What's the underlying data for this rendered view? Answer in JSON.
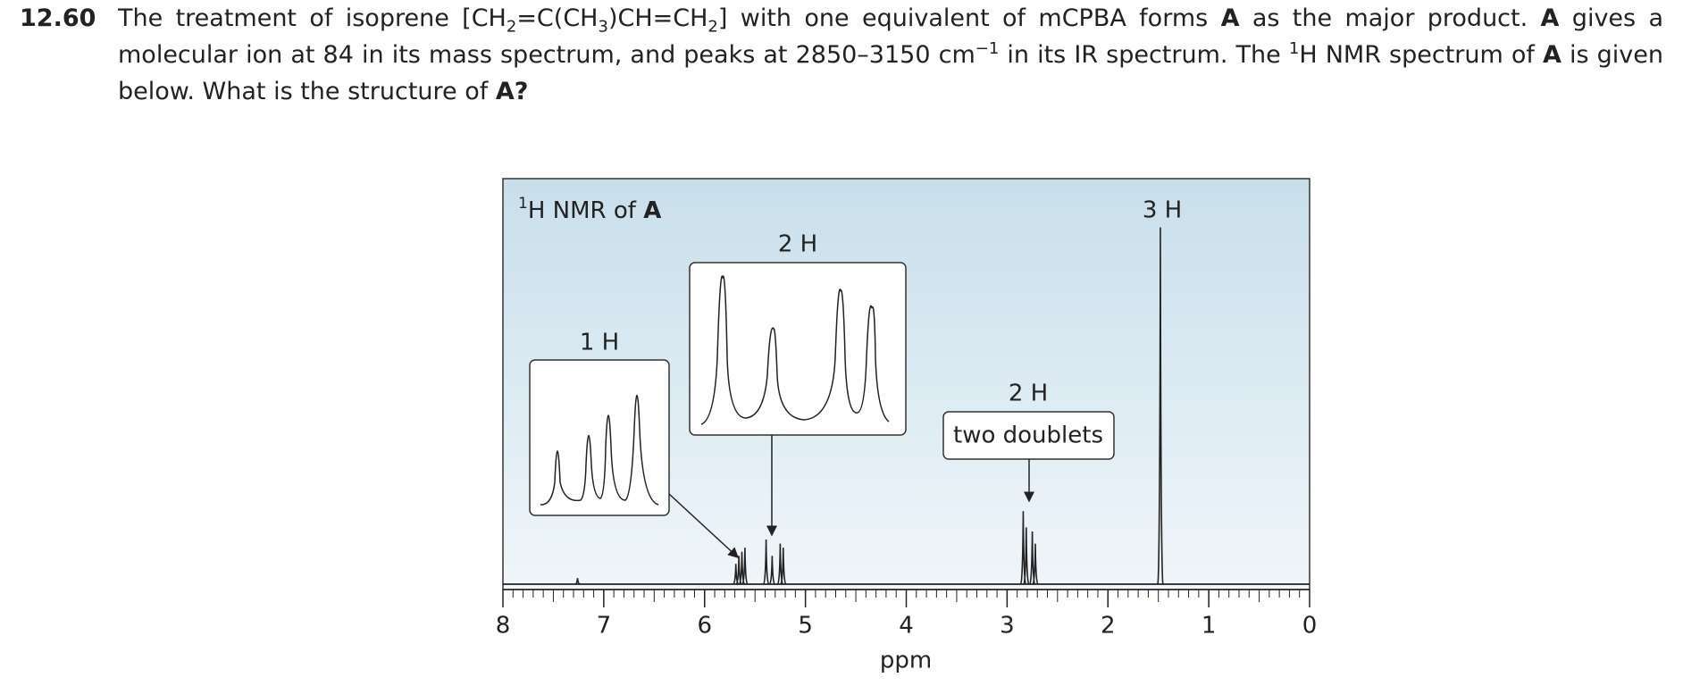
{
  "problem": {
    "number": "12.60",
    "text": [
      "The treatment of isoprene [CH",
      "2",
      "=C(CH",
      "3",
      ")CH=CH",
      "2",
      "] with one equivalent of mCPBA forms ",
      "A",
      " as the major product. ",
      "A",
      " gives a molecular ion at 84 in its mass spectrum, and peaks at 2850–3150 cm",
      "−1",
      " in its IR spectrum. The ",
      "1",
      "H NMR spectrum of ",
      "A",
      " is given below. What is the structure of ",
      "A?"
    ]
  },
  "chart_data": {
    "type": "nmr",
    "title": [
      "1",
      "H NMR of ",
      "A"
    ],
    "xlabel": "ppm",
    "xlim": [
      8,
      0
    ],
    "xticks": [
      8,
      7,
      6,
      5,
      4,
      3,
      2,
      1,
      0
    ],
    "ylim": [
      0,
      100
    ],
    "peaks": {
      "x": [
        7.26,
        5.69,
        5.66,
        5.63,
        5.6,
        5.39,
        5.33,
        5.25,
        5.22,
        2.84,
        2.81,
        2.75,
        2.72,
        1.48
      ],
      "values": [
        1.5,
        5,
        7,
        8,
        9,
        11,
        7,
        10,
        9,
        18,
        14,
        13,
        10,
        88
      ]
    },
    "color": "#222222",
    "annotations": {
      "peak_3h": "3 H",
      "inset_1h": "1 H",
      "inset_2h": "2 H",
      "doublets_count": "2 H",
      "doublets_note": "two doublets"
    }
  }
}
